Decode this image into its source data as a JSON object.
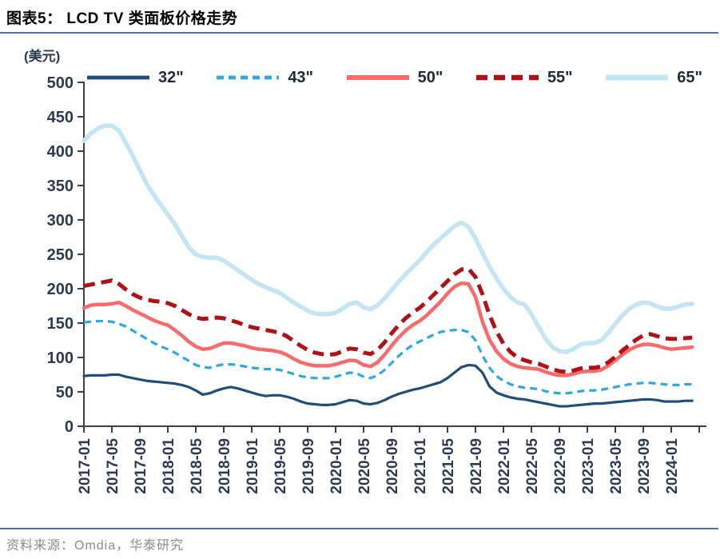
{
  "header": {
    "title": "图表5： LCD TV 类面板价格走势"
  },
  "footer": {
    "source": "资料来源：Omdia，华泰研究"
  },
  "chart_data": {
    "type": "line",
    "title": "LCD TV 类面板价格走势",
    "unit_label": "(美元)",
    "ylabel": "美元",
    "ylim": [
      0,
      500
    ],
    "yticks": [
      0,
      50,
      100,
      150,
      200,
      250,
      300,
      350,
      400,
      450,
      500
    ],
    "grid": false,
    "legend_position": "top",
    "x_start": "2017-01",
    "x_interval": "monthly",
    "xtick_labels": [
      "2017-01",
      "2017-05",
      "2017-09",
      "2018-01",
      "2018-05",
      "2018-09",
      "2019-01",
      "2019-05",
      "2019-09",
      "2020-01",
      "2020-05",
      "2020-09",
      "2021-01",
      "2021-05",
      "2021-09",
      "2022-01",
      "2022-05",
      "2022-09",
      "2023-01",
      "2023-05",
      "2023-09",
      "2024-01"
    ],
    "axis_color": "#3f3f3f",
    "tick_label_color": "#2d3a52",
    "series": [
      {
        "name": "32\"",
        "key": "32in",
        "color": "#1f4e79",
        "dash": null,
        "width": 3.2,
        "values": [
          73,
          74,
          74,
          74,
          75,
          75,
          72,
          70,
          68,
          66,
          65,
          64,
          63,
          62,
          60,
          57,
          52,
          46,
          48,
          52,
          55,
          57,
          55,
          52,
          49,
          46,
          44,
          45,
          45,
          43,
          40,
          36,
          33,
          32,
          31,
          31,
          32,
          35,
          38,
          37,
          33,
          32,
          34,
          38,
          43,
          47,
          50,
          53,
          55,
          58,
          61,
          64,
          70,
          78,
          86,
          89,
          88,
          78,
          58,
          49,
          45,
          42,
          40,
          39,
          37,
          35,
          33,
          31,
          29,
          29,
          30,
          31,
          32,
          33,
          33,
          34,
          35,
          36,
          37,
          38,
          39,
          39,
          38,
          36,
          36,
          36,
          37,
          37
        ]
      },
      {
        "name": "43\"",
        "key": "43in",
        "color": "#2fa8e1",
        "dash": "9,6",
        "width": 3.2,
        "values": [
          151,
          152,
          153,
          153,
          152,
          149,
          145,
          139,
          133,
          127,
          121,
          116,
          112,
          107,
          101,
          95,
          89,
          86,
          85,
          88,
          90,
          90,
          89,
          87,
          85,
          84,
          83,
          83,
          82,
          79,
          76,
          73,
          71,
          70,
          70,
          70,
          72,
          75,
          78,
          77,
          72,
          70,
          74,
          82,
          92,
          102,
          111,
          118,
          123,
          128,
          133,
          137,
          139,
          140,
          140,
          137,
          125,
          103,
          85,
          73,
          66,
          61,
          58,
          56,
          55,
          54,
          51,
          49,
          48,
          48,
          49,
          51,
          52,
          52,
          53,
          55,
          57,
          59,
          61,
          62,
          63,
          63,
          62,
          61,
          60,
          60,
          61,
          61
        ]
      },
      {
        "name": "50\"",
        "key": "50in",
        "color": "#f96b6b",
        "dash": null,
        "width": 4.5,
        "values": [
          172,
          176,
          177,
          177,
          178,
          180,
          175,
          169,
          164,
          159,
          154,
          150,
          147,
          140,
          132,
          123,
          116,
          112,
          113,
          117,
          121,
          121,
          119,
          117,
          114,
          112,
          111,
          110,
          108,
          104,
          98,
          93,
          90,
          88,
          88,
          88,
          90,
          93,
          96,
          95,
          89,
          87,
          93,
          104,
          117,
          129,
          139,
          147,
          153,
          161,
          171,
          181,
          193,
          203,
          208,
          207,
          188,
          152,
          126,
          109,
          98,
          91,
          87,
          85,
          84,
          83,
          79,
          76,
          74,
          74,
          76,
          79,
          80,
          80,
          82,
          88,
          96,
          104,
          111,
          116,
          119,
          119,
          117,
          114,
          112,
          113,
          114,
          115
        ]
      },
      {
        "name": "55\"",
        "key": "55in",
        "color": "#ae1117",
        "dash": "14,8",
        "width": 5,
        "values": [
          204,
          206,
          208,
          210,
          212,
          207,
          199,
          192,
          187,
          184,
          182,
          181,
          179,
          175,
          169,
          163,
          158,
          156,
          157,
          158,
          157,
          154,
          151,
          147,
          144,
          142,
          140,
          138,
          136,
          131,
          124,
          117,
          111,
          107,
          105,
          104,
          105,
          109,
          113,
          112,
          107,
          105,
          111,
          122,
          135,
          147,
          157,
          165,
          172,
          181,
          191,
          201,
          211,
          221,
          228,
          229,
          217,
          192,
          162,
          138,
          120,
          108,
          100,
          96,
          93,
          91,
          87,
          83,
          80,
          79,
          81,
          84,
          85,
          85,
          87,
          93,
          101,
          110,
          118,
          126,
          132,
          134,
          131,
          128,
          127,
          127,
          128,
          129
        ]
      },
      {
        "name": "65\"",
        "key": "65in",
        "color": "#c4e5f3",
        "dash": null,
        "width": 5.5,
        "values": [
          415,
          426,
          433,
          437,
          437,
          430,
          412,
          393,
          372,
          352,
          336,
          322,
          308,
          294,
          277,
          260,
          250,
          246,
          245,
          245,
          241,
          234,
          227,
          220,
          213,
          207,
          202,
          198,
          194,
          187,
          180,
          174,
          168,
          164,
          163,
          163,
          165,
          171,
          178,
          180,
          173,
          170,
          176,
          186,
          198,
          210,
          221,
          231,
          241,
          253,
          264,
          273,
          282,
          291,
          296,
          290,
          273,
          252,
          232,
          215,
          200,
          188,
          180,
          177,
          163,
          145,
          128,
          115,
          109,
          108,
          112,
          119,
          121,
          121,
          125,
          136,
          149,
          161,
          171,
          177,
          180,
          179,
          174,
          171,
          171,
          174,
          177,
          178
        ]
      }
    ]
  }
}
